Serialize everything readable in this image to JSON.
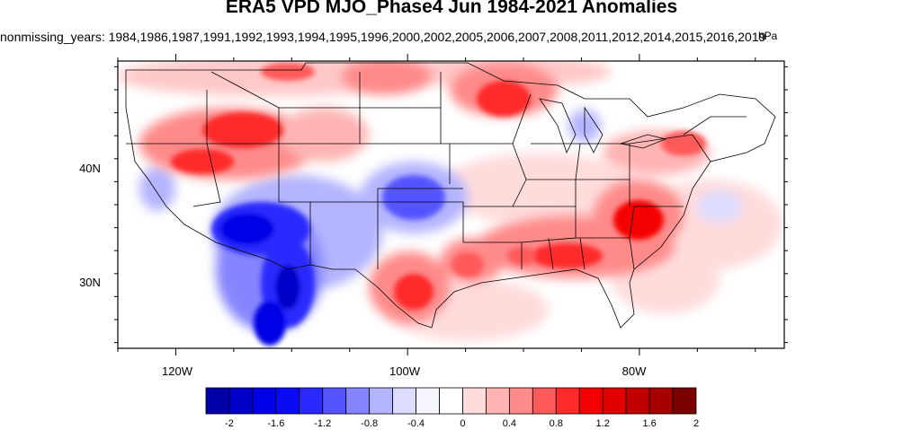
{
  "title": "ERA5 VPD MJO_Phase4 Jun 1984-2021 Anomalies",
  "subtitle": "nonmissing_years: 1984,1986,1987,1991,1992,1993,1994,1995,1996,2000,2002,2005,2006,2007,2008,2011,2012,2014,2015,2016,2019",
  "units": "hPa",
  "axes": {
    "lon_labels": [
      "120W",
      "100W",
      "80W"
    ],
    "lat_labels": [
      "40N",
      "30N"
    ],
    "lon_range": [
      -125,
      -67.5
    ],
    "lat_range": [
      24.5,
      49.5
    ]
  },
  "colorbar": {
    "labels": [
      "-2",
      "-1.6",
      "-1.2",
      "-0.8",
      "-0.4",
      "0",
      "0.4",
      "0.8",
      "1.2",
      "1.6",
      "2"
    ],
    "colors": [
      "#0000a6",
      "#0000c8",
      "#0000e6",
      "#0a0af5",
      "#2a2aff",
      "#5555ff",
      "#8585ff",
      "#b4b4ff",
      "#dcdcff",
      "#f6f6ff",
      "#ffffff",
      "#ffdcdc",
      "#ffb4b4",
      "#ff8a8a",
      "#ff5a5a",
      "#ff2a2a",
      "#f50000",
      "#e00000",
      "#c00000",
      "#a60000",
      "#7a0000"
    ]
  },
  "anomaly_regions": [
    {
      "name": "southwest-desert",
      "sign": "negative",
      "strength": "strong"
    },
    {
      "name": "southern-plains",
      "sign": "negative",
      "strength": "moderate"
    },
    {
      "name": "northern-rockies",
      "sign": "positive",
      "strength": "strong"
    },
    {
      "name": "southeast",
      "sign": "positive",
      "strength": "strong"
    },
    {
      "name": "texas-gulf",
      "sign": "positive",
      "strength": "moderate"
    },
    {
      "name": "northern-plains",
      "sign": "positive",
      "strength": "moderate"
    }
  ]
}
